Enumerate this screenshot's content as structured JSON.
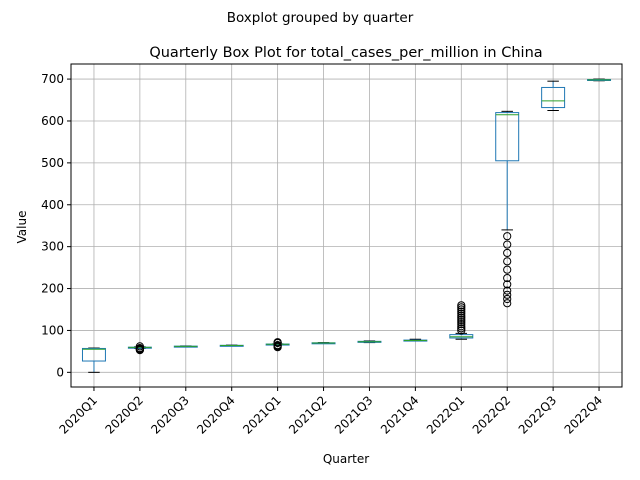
{
  "chart_data": {
    "type": "box",
    "suptitle": "Boxplot grouped by quarter",
    "title": "Quarterly Box Plot for total_cases_per_million in China",
    "xlabel": "Quarter",
    "ylabel": "Value",
    "ylim": [
      -35,
      736
    ],
    "yticks": [
      0,
      100,
      200,
      300,
      400,
      500,
      600,
      700
    ],
    "grid": true,
    "categories": [
      "2020Q1",
      "2020Q2",
      "2020Q3",
      "2020Q4",
      "2021Q1",
      "2021Q2",
      "2021Q3",
      "2021Q4",
      "2022Q1",
      "2022Q2",
      "2022Q3",
      "2022Q4"
    ],
    "boxes": [
      {
        "whisker_low": 0,
        "q1": 27,
        "median": 55,
        "q3": 57,
        "whisker_high": 58,
        "outliers": []
      },
      {
        "whisker_low": 57,
        "q1": 59,
        "median": 59.5,
        "q3": 60,
        "whisker_high": 61,
        "outliers": [
          53,
          54,
          55,
          56,
          57,
          58,
          62
        ]
      },
      {
        "whisker_low": 61,
        "q1": 61.5,
        "median": 62,
        "q3": 62.5,
        "whisker_high": 63,
        "outliers": []
      },
      {
        "whisker_low": 63,
        "q1": 63.5,
        "median": 64,
        "q3": 64.5,
        "whisker_high": 65,
        "outliers": []
      },
      {
        "whisker_low": 66,
        "q1": 66.5,
        "median": 67,
        "q3": 67.5,
        "whisker_high": 68,
        "outliers": [
          60,
          62,
          64,
          65,
          70,
          71,
          72
        ]
      },
      {
        "whisker_low": 69,
        "q1": 69.5,
        "median": 70,
        "q3": 70.5,
        "whisker_high": 71,
        "outliers": []
      },
      {
        "whisker_low": 71,
        "q1": 72,
        "median": 73,
        "q3": 74,
        "whisker_high": 75,
        "outliers": []
      },
      {
        "whisker_low": 75,
        "q1": 75.5,
        "median": 76,
        "q3": 77,
        "whisker_high": 79,
        "outliers": []
      },
      {
        "whisker_low": 79,
        "q1": 82,
        "median": 85,
        "q3": 90,
        "whisker_high": 93,
        "outliers": [
          100,
          105,
          110,
          115,
          120,
          125,
          130,
          135,
          140,
          145,
          150,
          155,
          160
        ]
      },
      {
        "whisker_low": 340,
        "q1": 505,
        "median": 615,
        "q3": 620,
        "whisker_high": 623,
        "outliers": [
          165,
          175,
          185,
          195,
          210,
          225,
          245,
          265,
          285,
          305,
          325
        ]
      },
      {
        "whisker_low": 625,
        "q1": 632,
        "median": 648,
        "q3": 680,
        "whisker_high": 695,
        "outliers": []
      },
      {
        "whisker_low": 696,
        "q1": 697,
        "median": 698,
        "q3": 699,
        "whisker_high": 700,
        "outliers": []
      }
    ],
    "colors": {
      "box": "#1f77b4",
      "median": "#2ca02c",
      "whisker_cap": "#000000",
      "flier": "#000000",
      "grid": "#b0b0b0"
    }
  }
}
